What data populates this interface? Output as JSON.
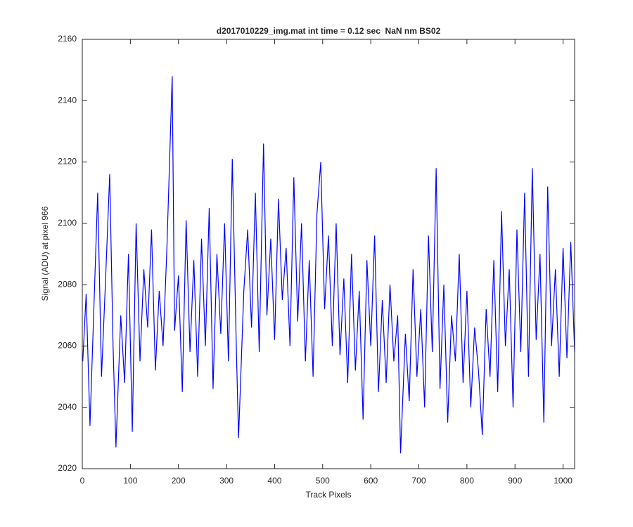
{
  "chart_data": {
    "type": "line",
    "title": "d2017010229_img.mat int time = 0.12 sec  NaN nm BS02",
    "x_label": "Track Pixels",
    "y_label": "Signal (ADU) at pixel 966",
    "color": "#0000ff",
    "x": [
      1,
      8,
      16,
      24,
      32,
      40,
      48,
      57,
      64,
      70,
      80,
      88,
      96,
      104,
      112,
      120,
      128,
      136,
      144,
      152,
      160,
      168,
      176,
      187,
      192,
      200,
      208,
      216,
      224,
      232,
      240,
      248,
      256,
      264,
      272,
      280,
      288,
      296,
      304,
      312,
      320,
      325,
      336,
      344,
      352,
      360,
      368,
      377,
      384,
      392,
      400,
      408,
      416,
      424,
      432,
      440,
      448,
      456,
      464,
      472,
      480,
      488,
      496,
      504,
      512,
      520,
      528,
      536,
      544,
      552,
      560,
      568,
      576,
      584,
      592,
      600,
      608,
      616,
      624,
      632,
      640,
      648,
      656,
      662,
      672,
      680,
      688,
      696,
      704,
      712,
      720,
      728,
      736,
      744,
      752,
      760,
      768,
      776,
      784,
      792,
      800,
      808,
      816,
      824,
      832,
      840,
      848,
      856,
      864,
      872,
      880,
      888,
      896,
      904,
      912,
      920,
      928,
      936,
      944,
      952,
      960,
      968,
      976,
      984,
      992,
      1000,
      1008,
      1016,
      1024
    ],
    "values": [
      2055,
      2077,
      2034,
      2072,
      2110,
      2050,
      2080,
      2116,
      2060,
      2027,
      2070,
      2048,
      2090,
      2032,
      2100,
      2055,
      2085,
      2066,
      2098,
      2052,
      2078,
      2060,
      2092,
      2148,
      2065,
      2083,
      2045,
      2101,
      2058,
      2088,
      2050,
      2095,
      2060,
      2105,
      2046,
      2090,
      2064,
      2100,
      2055,
      2121,
      2062,
      2030,
      2078,
      2098,
      2066,
      2110,
      2058,
      2126,
      2070,
      2095,
      2062,
      2108,
      2075,
      2092,
      2060,
      2115,
      2068,
      2100,
      2055,
      2088,
      2050,
      2103,
      2120,
      2072,
      2096,
      2060,
      2100,
      2057,
      2082,
      2048,
      2090,
      2052,
      2078,
      2036,
      2088,
      2060,
      2096,
      2045,
      2075,
      2048,
      2080,
      2055,
      2070,
      2025,
      2064,
      2042,
      2085,
      2050,
      2072,
      2040,
      2096,
      2058,
      2118,
      2046,
      2080,
      2035,
      2070,
      2055,
      2090,
      2048,
      2078,
      2040,
      2066,
      2052,
      2031,
      2072,
      2050,
      2088,
      2045,
      2104,
      2060,
      2085,
      2040,
      2098,
      2058,
      2110,
      2050,
      2118,
      2062,
      2090,
      2035,
      2112,
      2060,
      2085,
      2050,
      2092,
      2056,
      2094,
      2058
    ],
    "xlim": [
      0,
      1024
    ],
    "xticks": [
      0,
      100,
      200,
      300,
      400,
      500,
      600,
      700,
      800,
      900,
      1000
    ],
    "ylim": [
      2020,
      2160
    ],
    "yticks": [
      2020,
      2040,
      2060,
      2080,
      2100,
      2120,
      2140,
      2160
    ]
  }
}
